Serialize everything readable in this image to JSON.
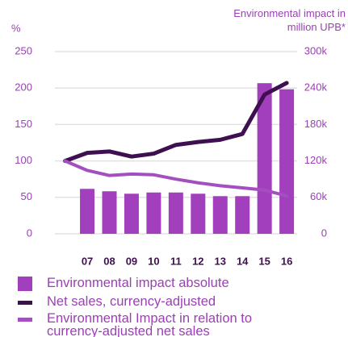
{
  "chart_data": {
    "type": "bar_line",
    "y_label": "%",
    "y2_label": "Environmental impact in million UPB*",
    "categories": [
      null,
      "07",
      "08",
      "09",
      "10",
      "11",
      "12",
      "13",
      "14",
      "15",
      "16"
    ],
    "series": [
      {
        "name": "Environmental impact absolute",
        "type": "bar",
        "axis": "y2",
        "color": "#a23fbc",
        "values": [
          null,
          74000,
          70000,
          66000,
          68000,
          68000,
          66000,
          62000,
          62000,
          248000,
          238000
        ]
      },
      {
        "name": "Net sales, currency-adjusted",
        "type": "line",
        "color": "#3e1050",
        "values": [
          100,
          111,
          113,
          106,
          110,
          122,
          126,
          129,
          137,
          191,
          207
        ]
      },
      {
        "name": "Environmental Impact in relation to currency-adjusted net sales",
        "type": "line",
        "color": "#a44fc0",
        "values": [
          100,
          87,
          80,
          82,
          81,
          75,
          70,
          66,
          63,
          60,
          52
        ]
      }
    ],
    "ylim": [
      0,
      250
    ],
    "yticks": [
      0,
      50,
      100,
      150,
      200,
      250
    ],
    "y2lim": [
      0,
      300000
    ],
    "y2ticks": [
      0,
      {
        "value": 60000,
        "label": "60k"
      },
      {
        "value": 120000,
        "label": "120k"
      },
      {
        "value": 180000,
        "label": "180k"
      },
      {
        "value": 240000,
        "label": "240k"
      },
      {
        "value": 300000,
        "label": "300k"
      }
    ],
    "grid": true
  }
}
